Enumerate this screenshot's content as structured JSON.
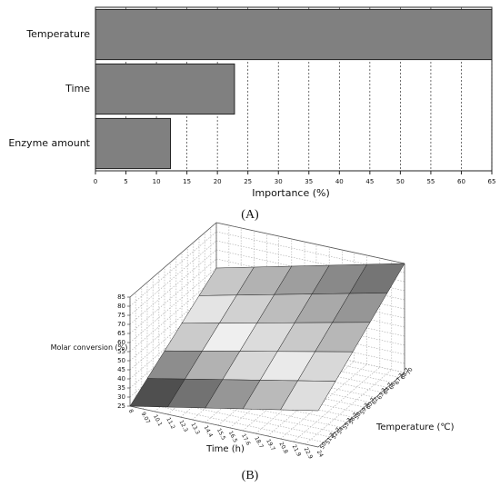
{
  "chart_data": [
    {
      "type": "bar",
      "orientation": "horizontal",
      "categories": [
        "Temperature",
        "Time",
        "Enzyme amount"
      ],
      "values": [
        65,
        22.8,
        12.3
      ],
      "color": "#808080",
      "xlabel": "Importance (%)",
      "xlim": [
        0,
        65
      ],
      "xticks": [
        0,
        5,
        10,
        15,
        20,
        25,
        30,
        35,
        40,
        45,
        50,
        55,
        60,
        65
      ],
      "grid": true,
      "caption": "(A)"
    },
    {
      "type": "surface",
      "xlabel": "Time (h)",
      "ylabel": "Temperature (℃)",
      "zlabel": "Molar conversion (%)",
      "x": [
        8,
        11.2,
        14.4,
        17.6,
        20.8,
        24
      ],
      "y": [
        50,
        54,
        58,
        62,
        66,
        70
      ],
      "z": [
        [
          25,
          29,
          33,
          37,
          41,
          45
        ],
        [
          32,
          36.2,
          40.4,
          44.6,
          48.8,
          53
        ],
        [
          39,
          43.4,
          47.8,
          52.2,
          56.6,
          61
        ],
        [
          46,
          50.6,
          55.2,
          59.8,
          64.4,
          69
        ],
        [
          53,
          57.8,
          62.6,
          67.4,
          72.2,
          77
        ],
        [
          60,
          65,
          70,
          75,
          80,
          85
        ]
      ],
      "xlim": [
        8,
        24
      ],
      "ylim": [
        50,
        70
      ],
      "zlim": [
        25,
        85
      ],
      "xticks": [
        8,
        9.07,
        10.1,
        11.2,
        12.3,
        13.3,
        14.4,
        15.5,
        16.5,
        17.6,
        18.7,
        19.7,
        20.8,
        21.9,
        22.9,
        24
      ],
      "yticks": [
        50,
        51.3,
        52.7,
        54,
        55.3,
        56.7,
        58,
        59.3,
        60.7,
        62,
        63.3,
        64.7,
        66,
        67.3,
        68.7,
        70
      ],
      "zticks": [
        25,
        30,
        35,
        40,
        45,
        50,
        55,
        60,
        65,
        70,
        75,
        80,
        85
      ],
      "grid": true,
      "caption": "(B)"
    }
  ]
}
